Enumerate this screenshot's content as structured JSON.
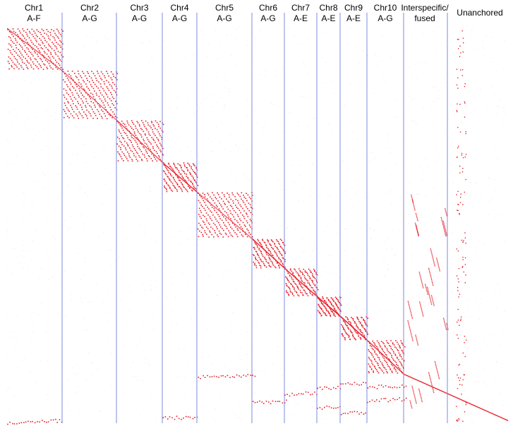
{
  "columns": [
    {
      "chr": "Chr1",
      "groups": "A-F"
    },
    {
      "chr": "Chr2",
      "groups": "A-G"
    },
    {
      "chr": "Chr3",
      "groups": "A-G"
    },
    {
      "chr": "Chr4",
      "groups": "A-G"
    },
    {
      "chr": "Chr5",
      "groups": "A-G"
    },
    {
      "chr": "Chr6",
      "groups": "A-G"
    },
    {
      "chr": "Chr7",
      "groups": "A-E"
    },
    {
      "chr": "Chr8",
      "groups": "A-E"
    },
    {
      "chr": "Chr9",
      "groups": "A-E"
    },
    {
      "chr": "Chr10",
      "groups": "A-G"
    },
    {
      "chr": "Interspecific/",
      "groups": "fused"
    },
    {
      "chr": "Unanchored",
      "groups": ""
    }
  ],
  "colors": {
    "dots": "#e8202a",
    "divider": "#6f7fd8",
    "background": "#ffffff",
    "haze": "#fbeaea"
  }
}
